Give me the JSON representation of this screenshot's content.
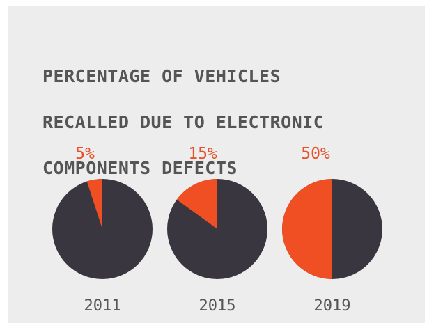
{
  "chart_data": {
    "type": "pie",
    "title": "PERCENTAGE OF VEHICLES RECALLED DUE TO ELECTRONIC COMPONENTS DEFECTS",
    "title_lines": [
      "PERCENTAGE OF VEHICLES",
      "RECALLED DUE TO ELECTRONIC",
      "COMPONENTS DEFECTS"
    ],
    "categories": [
      "2011",
      "2015",
      "2019"
    ],
    "values": [
      5,
      15,
      50
    ],
    "value_labels": [
      "5%",
      "15%",
      "50%"
    ],
    "unit": "%",
    "colors": {
      "highlight": "#f04e23",
      "remainder": "#3a3640",
      "label_highlight": "#e8502a",
      "text": "#555555",
      "background": "#eeeded"
    }
  }
}
